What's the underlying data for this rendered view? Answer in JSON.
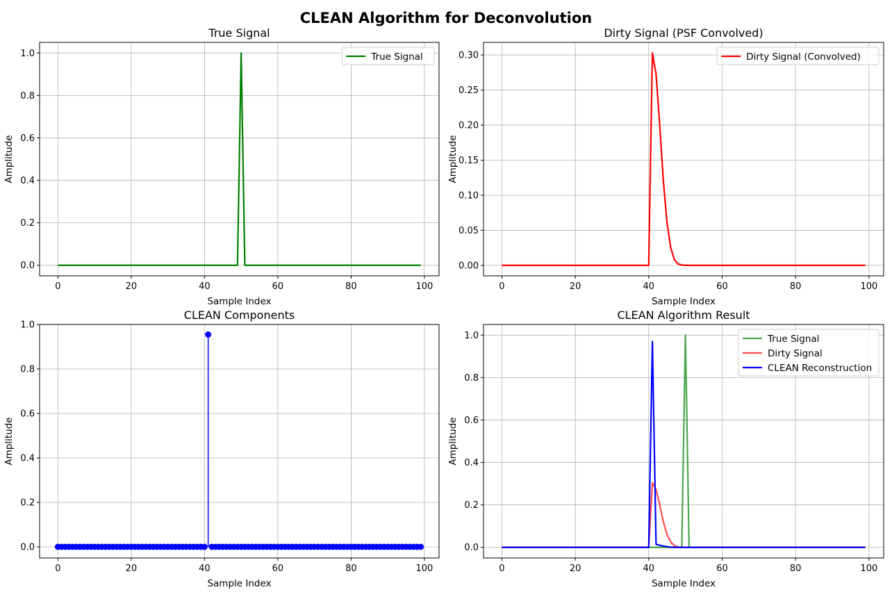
{
  "figure": {
    "title": "CLEAN Algorithm for Deconvolution"
  },
  "chart_data": [
    {
      "type": "line",
      "title": "True Signal",
      "xlabel": "Sample Index",
      "ylabel": "Amplitude",
      "xlim": [
        -5,
        104
      ],
      "ylim": [
        -0.05,
        1.05
      ],
      "xticks": [
        0,
        20,
        40,
        60,
        80,
        100
      ],
      "yticks": [
        0.0,
        0.2,
        0.4,
        0.6,
        0.8,
        1.0
      ],
      "grid": true,
      "legend": "top-right",
      "series": [
        {
          "name": "True Signal",
          "color": "#008000",
          "points": [
            [
              0,
              0
            ],
            [
              49,
              0
            ],
            [
              50,
              1.0
            ],
            [
              51,
              0
            ],
            [
              99,
              0
            ]
          ]
        }
      ]
    },
    {
      "type": "line",
      "title": "Dirty Signal (PSF Convolved)",
      "xlabel": "Sample Index",
      "ylabel": "Amplitude",
      "xlim": [
        -5,
        104
      ],
      "ylim": [
        -0.015,
        0.318
      ],
      "xticks": [
        0,
        20,
        40,
        60,
        80,
        100
      ],
      "yticks": [
        0.0,
        0.05,
        0.1,
        0.15,
        0.2,
        0.25,
        0.3
      ],
      "grid": true,
      "legend": "top-right",
      "series": [
        {
          "name": "Dirty Signal (Convolved)",
          "color": "#ff0000",
          "points": [
            [
              0,
              0
            ],
            [
              40,
              0
            ],
            [
              41,
              0.303
            ],
            [
              42,
              0.273
            ],
            [
              43,
              0.2
            ],
            [
              44,
              0.12
            ],
            [
              45,
              0.06
            ],
            [
              46,
              0.025
            ],
            [
              47,
              0.008
            ],
            [
              48,
              0.002
            ],
            [
              49,
              0.0005
            ],
            [
              50,
              0
            ],
            [
              99,
              0
            ]
          ]
        }
      ]
    },
    {
      "type": "scatter",
      "title": "CLEAN Components",
      "xlabel": "Sample Index",
      "ylabel": "Amplitude",
      "xlim": [
        -5,
        104
      ],
      "ylim": [
        -0.05,
        1.0
      ],
      "xticks": [
        0,
        20,
        40,
        60,
        80,
        100
      ],
      "yticks": [
        0.0,
        0.2,
        0.4,
        0.6,
        0.8,
        1.0
      ],
      "grid": true,
      "stem": true,
      "color": "#0000ff",
      "n": 100,
      "baseline": 0,
      "nonzero": [
        [
          41,
          0.955
        ]
      ]
    },
    {
      "type": "line",
      "title": "CLEAN Algorithm Result",
      "xlabel": "Sample Index",
      "ylabel": "Amplitude",
      "xlim": [
        -5,
        104
      ],
      "ylim": [
        -0.05,
        1.05
      ],
      "xticks": [
        0,
        20,
        40,
        60,
        80,
        100
      ],
      "yticks": [
        0.0,
        0.2,
        0.4,
        0.6,
        0.8,
        1.0
      ],
      "grid": true,
      "legend": "top-right",
      "series": [
        {
          "name": "True Signal",
          "color": "#008000",
          "opacity": 0.7,
          "points": [
            [
              0,
              0
            ],
            [
              49,
              0
            ],
            [
              50,
              1.0
            ],
            [
              51,
              0
            ],
            [
              99,
              0
            ]
          ]
        },
        {
          "name": "Dirty Signal",
          "color": "#ff0000",
          "opacity": 0.7,
          "points": [
            [
              0,
              0
            ],
            [
              40,
              0
            ],
            [
              41,
              0.303
            ],
            [
              42,
              0.273
            ],
            [
              43,
              0.2
            ],
            [
              44,
              0.12
            ],
            [
              45,
              0.06
            ],
            [
              46,
              0.025
            ],
            [
              47,
              0.008
            ],
            [
              48,
              0.002
            ],
            [
              49,
              0.0005
            ],
            [
              50,
              0
            ],
            [
              99,
              0
            ]
          ]
        },
        {
          "name": "CLEAN Reconstruction",
          "color": "#0000ff",
          "opacity": 1,
          "points": [
            [
              0,
              0
            ],
            [
              40,
              0
            ],
            [
              41,
              0.97
            ],
            [
              42,
              0.014
            ],
            [
              43,
              0.01
            ],
            [
              44,
              0.006
            ],
            [
              45,
              0.003
            ],
            [
              46,
              0.001
            ],
            [
              47,
              0
            ],
            [
              99,
              0
            ]
          ]
        }
      ]
    }
  ]
}
